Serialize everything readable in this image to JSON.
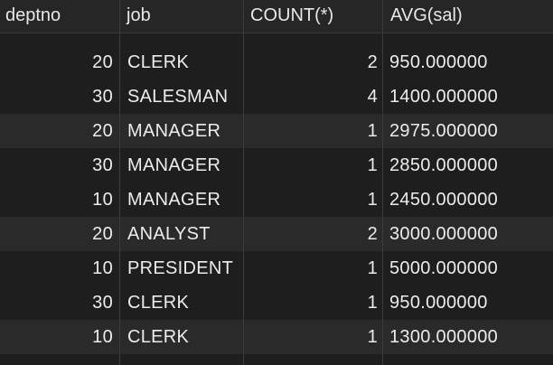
{
  "columns": {
    "deptno": "deptno",
    "job": "job",
    "count": "COUNT(*)",
    "avg": "AVG(sal)"
  },
  "rows": [
    {
      "deptno": "20",
      "job": "CLERK",
      "count": "2",
      "avg": " 950.000000"
    },
    {
      "deptno": "30",
      "job": "SALESMAN",
      "count": "4",
      "avg": "1400.000000"
    },
    {
      "deptno": "20",
      "job": "MANAGER",
      "count": "1",
      "avg": "2975.000000"
    },
    {
      "deptno": "30",
      "job": "MANAGER",
      "count": "1",
      "avg": "2850.000000"
    },
    {
      "deptno": "10",
      "job": "MANAGER",
      "count": "1",
      "avg": "2450.000000"
    },
    {
      "deptno": "20",
      "job": "ANALYST",
      "count": "2",
      "avg": "3000.000000"
    },
    {
      "deptno": "10",
      "job": "PRESIDENT",
      "count": "1",
      "avg": "5000.000000"
    },
    {
      "deptno": "30",
      "job": "CLERK",
      "count": "1",
      "avg": " 950.000000"
    },
    {
      "deptno": "10",
      "job": "CLERK",
      "count": "1",
      "avg": "1300.000000"
    }
  ]
}
